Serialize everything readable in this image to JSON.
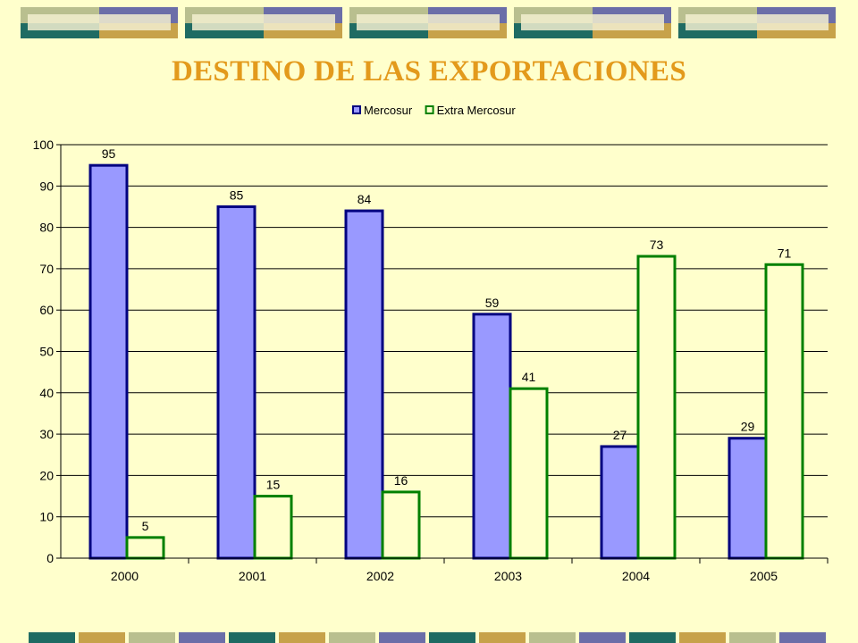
{
  "slide": {
    "title": "DESTINO DE LAS EXPORTACIONES",
    "background": "#ffffcc",
    "title_color": "#e39a1c",
    "decor_colors": [
      "#b9bf8f",
      "#6b6ea8",
      "#1f6b63",
      "#c7a24a",
      "#f2eed0"
    ]
  },
  "chart_data": {
    "type": "bar",
    "title": "",
    "xlabel": "",
    "ylabel": "",
    "categories": [
      "2000",
      "2001",
      "2002",
      "2003",
      "2004",
      "2005"
    ],
    "series": [
      {
        "name": "Mercosur",
        "values": [
          95,
          85,
          84,
          59,
          27,
          29
        ],
        "color": "#9999ff",
        "border": "#000080"
      },
      {
        "name": "Extra Mercosur",
        "values": [
          5,
          15,
          16,
          41,
          73,
          71
        ],
        "color": "#ffffcc",
        "border": "#008000"
      }
    ],
    "ylim": [
      0,
      100
    ],
    "yticks": [
      0,
      10,
      20,
      30,
      40,
      50,
      60,
      70,
      80,
      90,
      100
    ],
    "grid": true,
    "legend": "top-center",
    "data_labels": true
  }
}
